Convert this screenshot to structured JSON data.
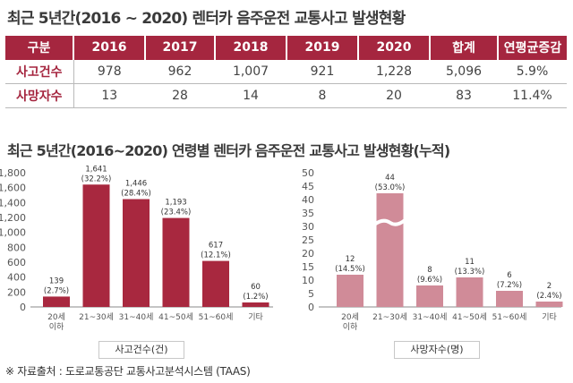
{
  "title_table": "최근 5년간(2016 ~ 2020) 렌터카 음주운전 교통사고 발생현황",
  "table": {
    "headers": [
      "구분",
      "2016",
      "2017",
      "2018",
      "2019",
      "2020",
      "합계",
      "연평균증감"
    ],
    "rows": [
      {
        "label": "사고건수",
        "values": [
          "978",
          "962",
          "1,007",
          "921",
          "1,228",
          "5,096",
          "5.9%"
        ]
      },
      {
        "label": "사망자수",
        "values": [
          "13",
          "28",
          "14",
          "8",
          "20",
          "83",
          "11.4%"
        ]
      }
    ]
  },
  "title_charts": "최근 5년간(2016~2020) 연령별 렌터카 음주운전 교통사고 발생현황(누적)",
  "colors": {
    "accent": "#a5263f",
    "accident_bar": "#a8283f",
    "death_bar": "#d08b98"
  },
  "chart_data": [
    {
      "type": "bar",
      "xlabel": "사고건수(건)",
      "ylabel": "",
      "ylim": [
        0,
        1800
      ],
      "ytick_step": 200,
      "ytick_labels": [
        "0",
        "200",
        "400",
        "600",
        "800",
        "1,000",
        "1,200",
        "1,400",
        "1,600",
        "1,800"
      ],
      "categories": [
        "20세\n이하",
        "21~30세",
        "31~40세",
        "41~50세",
        "51~60세",
        "기타"
      ],
      "values": [
        139,
        1641,
        1446,
        1193,
        617,
        60
      ],
      "value_labels": [
        "139",
        "1,641",
        "1,446",
        "1,193",
        "617",
        "60"
      ],
      "pct_labels": [
        "(2.7%)",
        "(32.2%)",
        "(28.4%)",
        "(23.4%)",
        "(12.1%)",
        "(1.2%)"
      ],
      "grid": false,
      "legend": "none"
    },
    {
      "type": "bar",
      "xlabel": "사망자수(명)",
      "ylabel": "",
      "ylim": [
        0,
        50
      ],
      "ytick_step": 5,
      "ytick_labels": [
        "0",
        "5",
        "10",
        "15",
        "20",
        "25",
        "30",
        "35",
        "40",
        "45",
        "50"
      ],
      "categories": [
        "20세\n이하",
        "21~30세",
        "31~40세",
        "41~50세",
        "51~60세",
        "기타"
      ],
      "values": [
        12,
        44,
        8,
        11,
        6,
        2
      ],
      "value_labels": [
        "12",
        "44",
        "8",
        "11",
        "6",
        "2"
      ],
      "pct_labels": [
        "(14.5%)",
        "(53.0%)",
        "(9.6%)",
        "(13.3%)",
        "(7.2%)",
        "(2.4%)"
      ],
      "broken_axis_bar": "21~30세",
      "grid": false,
      "legend": "none"
    }
  ],
  "source_note": "※ 자료출처 : 도로교통공단 교통사고분석시스템 (TAAS)"
}
